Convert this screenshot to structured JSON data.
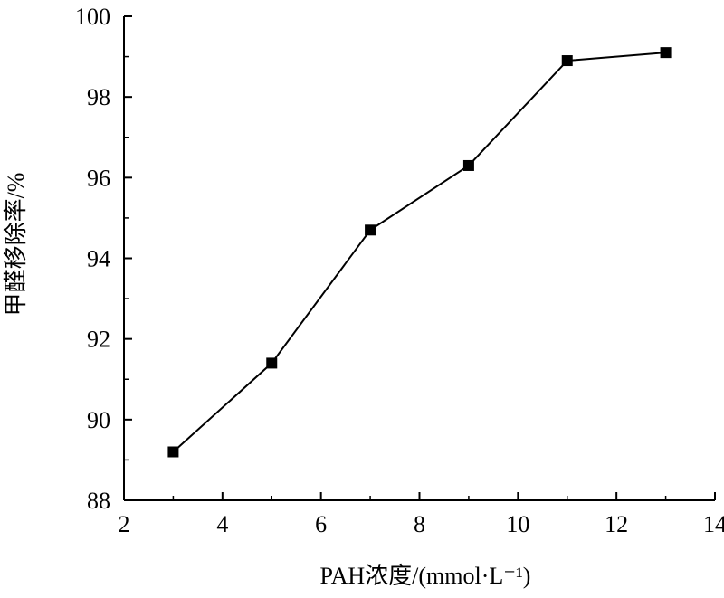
{
  "chart_data": {
    "type": "line",
    "title": "",
    "xlabel": "PAH浓度/(mmol·L⁻¹)",
    "ylabel": "甲醛移除率/%",
    "xlim": [
      2,
      14
    ],
    "ylim": [
      88,
      100
    ],
    "xticks": [
      2,
      4,
      6,
      8,
      10,
      12,
      14
    ],
    "yticks": [
      88,
      90,
      92,
      94,
      96,
      98,
      100
    ],
    "x_minor_step": 1,
    "y_minor_step": 1,
    "grid": false,
    "series": [
      {
        "name": "甲醛移除率",
        "x": [
          3,
          5,
          7,
          9,
          11,
          13
        ],
        "values": [
          89.2,
          91.4,
          94.7,
          96.3,
          98.9,
          99.1
        ],
        "marker": "square",
        "color": "#000000"
      }
    ]
  }
}
